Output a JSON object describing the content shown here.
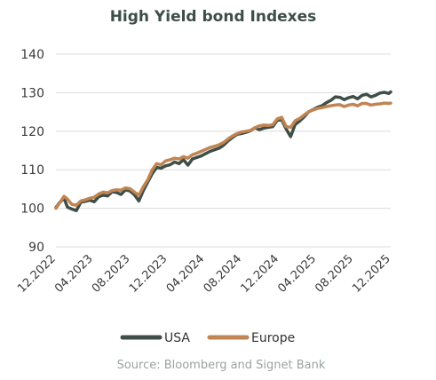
{
  "chart_data": {
    "type": "line",
    "title": "High Yield bond Indexes",
    "source": "Source: Bloomberg and Signet Bank",
    "ylim": [
      90,
      140
    ],
    "yticks": [
      90,
      100,
      110,
      120,
      130,
      140
    ],
    "xlim": [
      2022.917,
      2025.917
    ],
    "xtick_positions": [
      2022.917,
      2023.25,
      2023.583,
      2023.917,
      2024.25,
      2024.583,
      2024.917,
      2025.25,
      2025.583,
      2025.917
    ],
    "xtick_labels": [
      "12.2022",
      "04.2023",
      "08.2023",
      "12.2023",
      "04.2024",
      "08.2024",
      "12.2024",
      "04.2025",
      "08.2025",
      "12.2025"
    ],
    "grid": true,
    "legend_position": "bottom",
    "series": [
      {
        "name": "USA",
        "color": "#3f4f48",
        "x": [
          2022.917,
          2022.95,
          2022.99,
          2023.02,
          2023.06,
          2023.1,
          2023.14,
          2023.18,
          2023.22,
          2023.26,
          2023.3,
          2023.34,
          2023.38,
          2023.42,
          2023.46,
          2023.5,
          2023.54,
          2023.58,
          2023.62,
          2023.66,
          2023.7,
          2023.74,
          2023.78,
          2023.82,
          2023.86,
          2023.9,
          2023.94,
          2023.98,
          2024.02,
          2024.06,
          2024.1,
          2024.14,
          2024.18,
          2024.22,
          2024.26,
          2024.3,
          2024.34,
          2024.38,
          2024.42,
          2024.46,
          2024.5,
          2024.54,
          2024.58,
          2024.62,
          2024.66,
          2024.7,
          2024.74,
          2024.78,
          2024.82,
          2024.86,
          2024.9,
          2024.94,
          2024.98,
          2025.02,
          2025.06,
          2025.1,
          2025.14,
          2025.18,
          2025.22,
          2025.26,
          2025.3,
          2025.34,
          2025.38,
          2025.42,
          2025.46,
          2025.5,
          2025.54,
          2025.58,
          2025.62,
          2025.66,
          2025.7,
          2025.74,
          2025.78,
          2025.82,
          2025.86,
          2025.9,
          2025.917
        ],
        "y": [
          100.2,
          101.5,
          102.6,
          100.3,
          99.8,
          99.4,
          101.6,
          101.8,
          102.1,
          101.7,
          103.0,
          103.4,
          103.2,
          104.3,
          104.1,
          103.6,
          104.8,
          104.5,
          103.5,
          101.9,
          104.6,
          106.8,
          109.0,
          110.6,
          110.4,
          111.0,
          111.3,
          112.0,
          111.6,
          112.6,
          111.2,
          112.8,
          113.2,
          113.6,
          114.2,
          114.8,
          115.2,
          115.6,
          116.4,
          117.5,
          118.4,
          119.2,
          119.4,
          119.7,
          120.1,
          120.9,
          120.4,
          120.8,
          121.0,
          121.2,
          122.8,
          123.0,
          120.6,
          118.6,
          121.7,
          122.6,
          123.7,
          125.0,
          125.6,
          126.2,
          126.6,
          127.4,
          128.0,
          128.9,
          128.8,
          128.2,
          128.7,
          129.0,
          128.4,
          129.3,
          129.6,
          128.9,
          129.3,
          129.9,
          130.1,
          129.8,
          130.2
        ]
      },
      {
        "name": "Europe",
        "color": "#c08552",
        "x": [
          2022.917,
          2022.95,
          2022.99,
          2023.02,
          2023.06,
          2023.1,
          2023.14,
          2023.18,
          2023.22,
          2023.26,
          2023.3,
          2023.34,
          2023.38,
          2023.42,
          2023.46,
          2023.5,
          2023.54,
          2023.58,
          2023.62,
          2023.66,
          2023.7,
          2023.74,
          2023.78,
          2023.82,
          2023.86,
          2023.9,
          2023.94,
          2023.98,
          2024.02,
          2024.06,
          2024.1,
          2024.14,
          2024.18,
          2024.22,
          2024.26,
          2024.3,
          2024.34,
          2024.38,
          2024.42,
          2024.46,
          2024.5,
          2024.54,
          2024.58,
          2024.62,
          2024.66,
          2024.7,
          2024.74,
          2024.78,
          2024.82,
          2024.86,
          2024.9,
          2024.94,
          2024.98,
          2025.02,
          2025.06,
          2025.1,
          2025.14,
          2025.18,
          2025.22,
          2025.26,
          2025.3,
          2025.34,
          2025.38,
          2025.42,
          2025.46,
          2025.5,
          2025.54,
          2025.58,
          2025.62,
          2025.66,
          2025.7,
          2025.74,
          2025.78,
          2025.82,
          2025.86,
          2025.9,
          2025.917
        ],
        "y": [
          100.0,
          101.4,
          103.1,
          102.4,
          101.0,
          100.8,
          101.9,
          102.2,
          102.6,
          102.9,
          103.7,
          104.2,
          104.0,
          104.6,
          104.8,
          104.7,
          105.3,
          105.1,
          104.2,
          103.4,
          105.6,
          107.4,
          110.0,
          111.6,
          111.3,
          112.3,
          112.6,
          113.0,
          112.8,
          113.4,
          113.0,
          113.9,
          114.3,
          114.8,
          115.3,
          115.8,
          116.1,
          116.5,
          117.1,
          118.0,
          118.8,
          119.4,
          119.8,
          120.0,
          120.2,
          120.9,
          121.4,
          121.6,
          121.5,
          121.7,
          123.2,
          123.6,
          121.2,
          121.0,
          122.7,
          123.3,
          124.2,
          125.0,
          125.5,
          125.9,
          126.1,
          126.4,
          126.6,
          126.8,
          126.9,
          126.4,
          126.8,
          127.0,
          126.6,
          127.2,
          127.2,
          126.8,
          127.0,
          127.1,
          127.3,
          127.2,
          127.3
        ]
      }
    ]
  }
}
